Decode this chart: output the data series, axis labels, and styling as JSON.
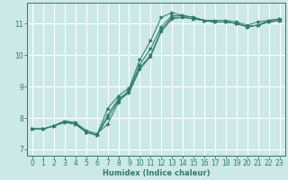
{
  "xlabel": "Humidex (Indice chaleur)",
  "ylabel": "",
  "bg_color": "#cce8e8",
  "grid_color": "#ffffff",
  "line_color": "#2e7d6e",
  "xlim": [
    -0.5,
    23.5
  ],
  "ylim": [
    6.8,
    11.65
  ],
  "xticks": [
    0,
    1,
    2,
    3,
    4,
    5,
    6,
    7,
    8,
    9,
    10,
    11,
    12,
    13,
    14,
    15,
    16,
    17,
    18,
    19,
    20,
    21,
    22,
    23
  ],
  "yticks": [
    7,
    8,
    9,
    10,
    11
  ],
  "series": [
    [
      7.65,
      7.65,
      7.75,
      7.9,
      7.85,
      7.55,
      7.45,
      8.3,
      8.7,
      8.95,
      9.85,
      10.45,
      11.2,
      11.35,
      11.25,
      11.2,
      11.1,
      11.05,
      11.05,
      11.0,
      10.9,
      10.95,
      11.1,
      11.15
    ],
    [
      7.65,
      7.65,
      7.75,
      7.9,
      7.85,
      7.6,
      7.5,
      7.8,
      8.5,
      8.9,
      9.7,
      10.2,
      10.9,
      11.25,
      11.25,
      11.2,
      11.1,
      11.1,
      11.1,
      11.05,
      10.95,
      11.05,
      11.1,
      11.15
    ],
    [
      7.65,
      7.65,
      7.75,
      7.85,
      7.8,
      7.55,
      7.45,
      8.1,
      8.6,
      8.85,
      9.6,
      10.0,
      10.8,
      11.2,
      11.2,
      11.15,
      11.1,
      11.05,
      11.05,
      11.0,
      10.9,
      10.95,
      11.05,
      11.1
    ],
    [
      7.65,
      7.65,
      7.75,
      7.9,
      7.8,
      7.55,
      7.45,
      8.0,
      8.55,
      8.8,
      9.55,
      9.95,
      10.75,
      11.15,
      11.2,
      11.15,
      11.1,
      11.05,
      11.05,
      11.0,
      10.9,
      10.95,
      11.05,
      11.1
    ]
  ]
}
